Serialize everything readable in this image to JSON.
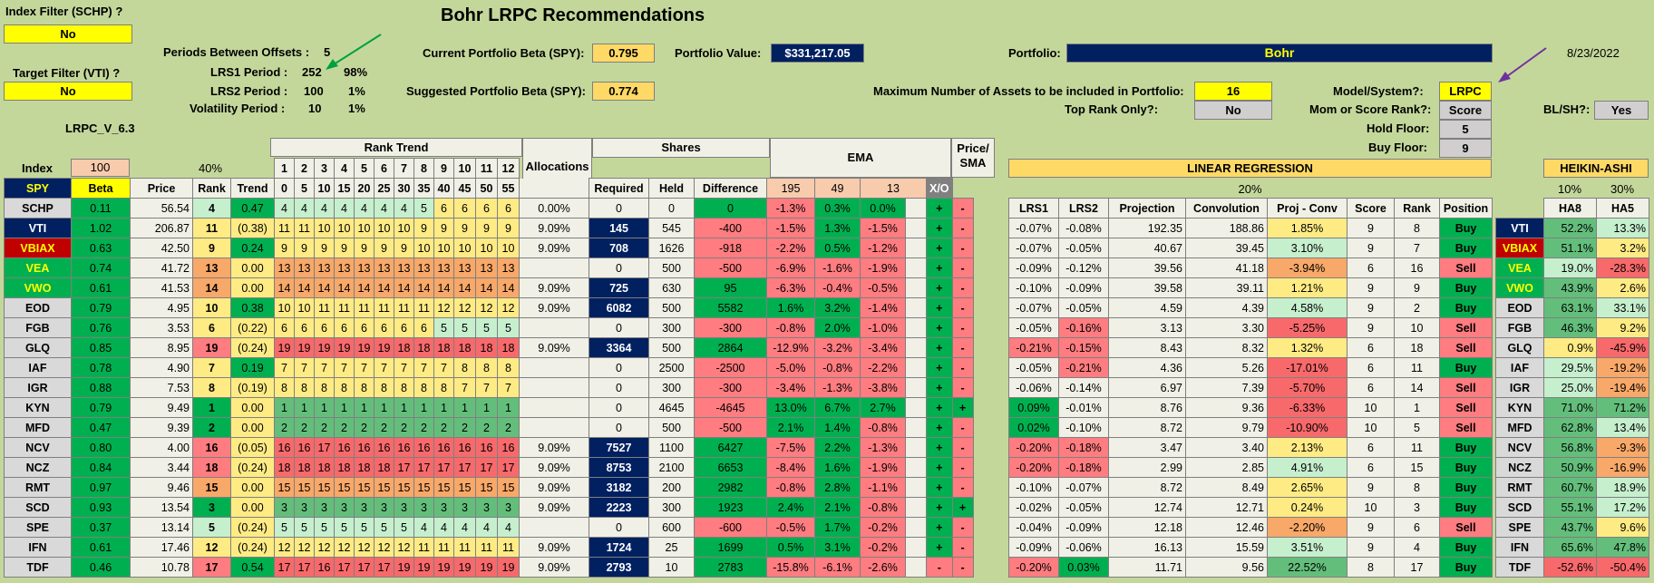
{
  "title": "Bohr LRPC Recommendations",
  "index_filter": {
    "label": "Index Filter (SCHP) ?",
    "value": "No"
  },
  "target_filter": {
    "label": "Target Filter (VTI) ?",
    "value": "No"
  },
  "version": "LRPC_V_6.3",
  "periods": {
    "offsets_label": "Periods Between Offsets :",
    "offsets_value": "5",
    "lrs1_label": "LRS1 Period :",
    "lrs1_value": "252",
    "lrs1_pct": "98%",
    "lrs2_label": "LRS2 Period :",
    "lrs2_value": "100",
    "lrs2_pct": "1%",
    "vol_label": "Volatility Period :",
    "vol_value": "10",
    "vol_pct": "1%"
  },
  "beta": {
    "current_label": "Current Portfolio Beta (SPY):",
    "current_value": "0.795",
    "suggested_label": "Suggested Portfolio Beta (SPY):",
    "suggested_value": "0.774"
  },
  "portfolio_value": {
    "label": "Portfolio Value:",
    "value": "$331,217.05"
  },
  "portfolio": {
    "label": "Portfolio:",
    "value": "Bohr"
  },
  "date": "8/23/2022",
  "max_assets": {
    "label": "Maximum Number of Assets to be included in Portfolio:",
    "value": "16"
  },
  "top_rank": {
    "label": "Top Rank Only?:",
    "value": "No"
  },
  "model": {
    "label": "Model/System?:",
    "value": "LRPC"
  },
  "mom_score": {
    "label": "Mom or Score Rank?:",
    "value": "Score"
  },
  "hold_floor": {
    "label": "Hold Floor:",
    "value": "5"
  },
  "buy_floor": {
    "label": "Buy Floor:",
    "value": "9"
  },
  "blsh": {
    "label": "BL/SH?:",
    "value": "Yes"
  },
  "section": {
    "rank_trend": "Rank Trend",
    "shares": "Shares",
    "ema": "EMA",
    "price_sma": "Price/ SMA",
    "linreg": "LINEAR REGRESSION",
    "heikin": "HEIKIN-ASHI",
    "lr_pct": "20%",
    "ha8_pct": "10%",
    "ha5_pct": "30%"
  },
  "index_row": {
    "label": "Index",
    "beta_val": "100",
    "rank_pct": "40%"
  },
  "col_headers": {
    "beta": "Beta",
    "price": "Price",
    "rank": "Rank",
    "trend": "Trend",
    "alloc": "Allocations",
    "required": "Required",
    "held": "Held",
    "difference": "Difference",
    "ema195": "195",
    "ema49": "49",
    "ema13": "13",
    "xo": "X/O",
    "lrs1": "LRS1",
    "lrs2": "LRS2",
    "projection": "Projection",
    "convolution": "Convolution",
    "projconv": "Proj - Conv",
    "score": "Score",
    "position": "Position",
    "ha8": "HA8",
    "ha5": "HA5"
  },
  "rank_nums": [
    "1",
    "2",
    "3",
    "4",
    "5",
    "6",
    "7",
    "8",
    "9",
    "10",
    "11",
    "12"
  ],
  "rank_offs": [
    "0",
    "5",
    "10",
    "15",
    "20",
    "25",
    "30",
    "35",
    "40",
    "45",
    "50",
    "55"
  ],
  "spy": "SPY",
  "rows": [
    {
      "t": "SCHP",
      "beta": "0.11",
      "price": "56.54",
      "rank": "4",
      "trend": "0.47",
      "rt": [
        "4",
        "4",
        "4",
        "4",
        "4",
        "4",
        "4",
        "5",
        "6",
        "6",
        "6",
        "6"
      ],
      "alloc": "0.00%",
      "req": "0",
      "held": "0",
      "diff": "0",
      "e1": "-1.3%",
      "e2": "0.3%",
      "e3": "0.0%",
      "x1": "+",
      "x2": "-",
      "l1": "-0.07%",
      "l2": "-0.08%",
      "proj": "192.35",
      "conv": "188.86",
      "pc": "1.85%",
      "sc": "9",
      "rk": "8",
      "pos": "Buy",
      "t2": "VTI",
      "h8": "52.2%",
      "h5": "13.3%"
    },
    {
      "t": "VTI",
      "beta": "1.02",
      "price": "206.87",
      "rank": "11",
      "trend": "(0.38)",
      "rt": [
        "11",
        "11",
        "10",
        "10",
        "10",
        "10",
        "10",
        "9",
        "9",
        "9",
        "9",
        "9"
      ],
      "alloc": "9.09%",
      "req": "145",
      "held": "545",
      "diff": "-400",
      "e1": "-1.5%",
      "e2": "1.3%",
      "e3": "-1.5%",
      "x1": "+",
      "x2": "-",
      "l1": "-0.07%",
      "l2": "-0.05%",
      "proj": "40.67",
      "conv": "39.45",
      "pc": "3.10%",
      "sc": "9",
      "rk": "7",
      "pos": "Buy",
      "t2": "VBIAX",
      "h8": "51.1%",
      "h5": "3.2%"
    },
    {
      "t": "VBIAX",
      "beta": "0.63",
      "price": "42.50",
      "rank": "9",
      "trend": "0.24",
      "rt": [
        "9",
        "9",
        "9",
        "9",
        "9",
        "9",
        "9",
        "10",
        "10",
        "10",
        "10",
        "10"
      ],
      "alloc": "9.09%",
      "req": "708",
      "held": "1626",
      "diff": "-918",
      "e1": "-2.2%",
      "e2": "0.5%",
      "e3": "-1.2%",
      "x1": "+",
      "x2": "-",
      "l1": "-0.09%",
      "l2": "-0.12%",
      "proj": "39.56",
      "conv": "41.18",
      "pc": "-3.94%",
      "sc": "6",
      "rk": "16",
      "pos": "Sell",
      "t2": "VEA",
      "h8": "19.0%",
      "h5": "-28.3%"
    },
    {
      "t": "VEA",
      "beta": "0.74",
      "price": "41.72",
      "rank": "13",
      "trend": "0.00",
      "rt": [
        "13",
        "13",
        "13",
        "13",
        "13",
        "13",
        "13",
        "13",
        "13",
        "13",
        "13",
        "13"
      ],
      "alloc": "",
      "req": "0",
      "held": "500",
      "diff": "-500",
      "e1": "-6.9%",
      "e2": "-1.6%",
      "e3": "-1.9%",
      "x1": "+",
      "x2": "-",
      "l1": "-0.10%",
      "l2": "-0.09%",
      "proj": "39.58",
      "conv": "39.11",
      "pc": "1.21%",
      "sc": "9",
      "rk": "9",
      "pos": "Buy",
      "t2": "VWO",
      "h8": "43.9%",
      "h5": "2.6%"
    },
    {
      "t": "VWO",
      "beta": "0.61",
      "price": "41.53",
      "rank": "14",
      "trend": "0.00",
      "rt": [
        "14",
        "14",
        "14",
        "14",
        "14",
        "14",
        "14",
        "14",
        "14",
        "14",
        "14",
        "14"
      ],
      "alloc": "9.09%",
      "req": "725",
      "held": "630",
      "diff": "95",
      "e1": "-6.3%",
      "e2": "-0.4%",
      "e3": "-0.5%",
      "x1": "+",
      "x2": "-",
      "l1": "-0.07%",
      "l2": "-0.05%",
      "proj": "4.59",
      "conv": "4.39",
      "pc": "4.58%",
      "sc": "9",
      "rk": "2",
      "pos": "Buy",
      "t2": "EOD",
      "h8": "63.1%",
      "h5": "33.1%"
    },
    {
      "t": "EOD",
      "beta": "0.79",
      "price": "4.95",
      "rank": "10",
      "trend": "0.38",
      "rt": [
        "10",
        "10",
        "11",
        "11",
        "11",
        "11",
        "11",
        "11",
        "12",
        "12",
        "12",
        "12"
      ],
      "alloc": "9.09%",
      "req": "6082",
      "held": "500",
      "diff": "5582",
      "e1": "1.6%",
      "e2": "3.2%",
      "e3": "-1.4%",
      "x1": "+",
      "x2": "-",
      "l1": "-0.05%",
      "l2": "-0.16%",
      "proj": "3.13",
      "conv": "3.30",
      "pc": "-5.25%",
      "sc": "9",
      "rk": "10",
      "pos": "Sell",
      "t2": "FGB",
      "h8": "46.3%",
      "h5": "9.2%"
    },
    {
      "t": "FGB",
      "beta": "0.76",
      "price": "3.53",
      "rank": "6",
      "trend": "(0.22)",
      "rt": [
        "6",
        "6",
        "6",
        "6",
        "6",
        "6",
        "6",
        "6",
        "5",
        "5",
        "5",
        "5"
      ],
      "alloc": "",
      "req": "0",
      "held": "300",
      "diff": "-300",
      "e1": "-0.8%",
      "e2": "2.0%",
      "e3": "-1.0%",
      "x1": "+",
      "x2": "-",
      "l1": "-0.21%",
      "l2": "-0.15%",
      "proj": "8.43",
      "conv": "8.32",
      "pc": "1.32%",
      "sc": "6",
      "rk": "18",
      "pos": "Sell",
      "t2": "GLQ",
      "h8": "0.9%",
      "h5": "-45.9%"
    },
    {
      "t": "GLQ",
      "beta": "0.85",
      "price": "8.95",
      "rank": "19",
      "trend": "(0.24)",
      "rt": [
        "19",
        "19",
        "19",
        "19",
        "19",
        "19",
        "18",
        "18",
        "18",
        "18",
        "18",
        "18"
      ],
      "alloc": "9.09%",
      "req": "3364",
      "held": "500",
      "diff": "2864",
      "e1": "-12.9%",
      "e2": "-3.2%",
      "e3": "-3.4%",
      "x1": "+",
      "x2": "-",
      "l1": "-0.05%",
      "l2": "-0.21%",
      "proj": "4.36",
      "conv": "5.26",
      "pc": "-17.01%",
      "sc": "6",
      "rk": "11",
      "pos": "Buy",
      "t2": "IAF",
      "h8": "29.5%",
      "h5": "-19.2%"
    },
    {
      "t": "IAF",
      "beta": "0.78",
      "price": "4.90",
      "rank": "7",
      "trend": "0.19",
      "rt": [
        "7",
        "7",
        "7",
        "7",
        "7",
        "7",
        "7",
        "7",
        "7",
        "8",
        "8",
        "8"
      ],
      "alloc": "",
      "req": "0",
      "held": "2500",
      "diff": "-2500",
      "e1": "-5.0%",
      "e2": "-0.8%",
      "e3": "-2.2%",
      "x1": "+",
      "x2": "-",
      "l1": "-0.06%",
      "l2": "-0.14%",
      "proj": "6.97",
      "conv": "7.39",
      "pc": "-5.70%",
      "sc": "6",
      "rk": "14",
      "pos": "Sell",
      "t2": "IGR",
      "h8": "25.0%",
      "h5": "-19.4%"
    },
    {
      "t": "IGR",
      "beta": "0.88",
      "price": "7.53",
      "rank": "8",
      "trend": "(0.19)",
      "rt": [
        "8",
        "8",
        "8",
        "8",
        "8",
        "8",
        "8",
        "8",
        "8",
        "7",
        "7",
        "7"
      ],
      "alloc": "",
      "req": "0",
      "held": "300",
      "diff": "-300",
      "e1": "-3.4%",
      "e2": "-1.3%",
      "e3": "-3.8%",
      "x1": "+",
      "x2": "-",
      "l1": "0.09%",
      "l2": "-0.01%",
      "proj": "8.76",
      "conv": "9.36",
      "pc": "-6.33%",
      "sc": "10",
      "rk": "1",
      "pos": "Sell",
      "t2": "KYN",
      "h8": "71.0%",
      "h5": "71.2%"
    },
    {
      "t": "KYN",
      "beta": "0.79",
      "price": "9.49",
      "rank": "1",
      "trend": "0.00",
      "rt": [
        "1",
        "1",
        "1",
        "1",
        "1",
        "1",
        "1",
        "1",
        "1",
        "1",
        "1",
        "1"
      ],
      "alloc": "",
      "req": "0",
      "held": "4645",
      "diff": "-4645",
      "e1": "13.0%",
      "e2": "6.7%",
      "e3": "2.7%",
      "x1": "+",
      "x2": "+",
      "l1": "0.02%",
      "l2": "-0.10%",
      "proj": "8.72",
      "conv": "9.79",
      "pc": "-10.90%",
      "sc": "10",
      "rk": "5",
      "pos": "Sell",
      "t2": "MFD",
      "h8": "62.8%",
      "h5": "13.4%"
    },
    {
      "t": "MFD",
      "beta": "0.47",
      "price": "9.39",
      "rank": "2",
      "trend": "0.00",
      "rt": [
        "2",
        "2",
        "2",
        "2",
        "2",
        "2",
        "2",
        "2",
        "2",
        "2",
        "2",
        "2"
      ],
      "alloc": "",
      "req": "0",
      "held": "500",
      "diff": "-500",
      "e1": "2.1%",
      "e2": "1.4%",
      "e3": "-0.8%",
      "x1": "+",
      "x2": "-",
      "l1": "-0.20%",
      "l2": "-0.18%",
      "proj": "3.47",
      "conv": "3.40",
      "pc": "2.13%",
      "sc": "6",
      "rk": "11",
      "pos": "Buy",
      "t2": "NCV",
      "h8": "56.8%",
      "h5": "-9.3%"
    },
    {
      "t": "NCV",
      "beta": "0.80",
      "price": "4.00",
      "rank": "16",
      "trend": "(0.05)",
      "rt": [
        "16",
        "16",
        "17",
        "16",
        "16",
        "16",
        "16",
        "16",
        "16",
        "16",
        "16",
        "16"
      ],
      "alloc": "9.09%",
      "req": "7527",
      "held": "1100",
      "diff": "6427",
      "e1": "-7.5%",
      "e2": "2.2%",
      "e3": "-1.3%",
      "x1": "+",
      "x2": "-",
      "l1": "-0.20%",
      "l2": "-0.18%",
      "proj": "2.99",
      "conv": "2.85",
      "pc": "4.91%",
      "sc": "6",
      "rk": "15",
      "pos": "Buy",
      "t2": "NCZ",
      "h8": "50.9%",
      "h5": "-16.9%"
    },
    {
      "t": "NCZ",
      "beta": "0.84",
      "price": "3.44",
      "rank": "18",
      "trend": "(0.24)",
      "rt": [
        "18",
        "18",
        "18",
        "18",
        "18",
        "18",
        "17",
        "17",
        "17",
        "17",
        "17",
        "17"
      ],
      "alloc": "9.09%",
      "req": "8753",
      "held": "2100",
      "diff": "6653",
      "e1": "-8.4%",
      "e2": "1.6%",
      "e3": "-1.9%",
      "x1": "+",
      "x2": "-",
      "l1": "-0.10%",
      "l2": "-0.07%",
      "proj": "8.72",
      "conv": "8.49",
      "pc": "2.65%",
      "sc": "9",
      "rk": "8",
      "pos": "Buy",
      "t2": "RMT",
      "h8": "60.7%",
      "h5": "18.9%"
    },
    {
      "t": "RMT",
      "beta": "0.97",
      "price": "9.46",
      "rank": "15",
      "trend": "0.00",
      "rt": [
        "15",
        "15",
        "15",
        "15",
        "15",
        "15",
        "15",
        "15",
        "15",
        "15",
        "15",
        "15"
      ],
      "alloc": "9.09%",
      "req": "3182",
      "held": "200",
      "diff": "2982",
      "e1": "-0.8%",
      "e2": "2.8%",
      "e3": "-1.1%",
      "x1": "+",
      "x2": "-",
      "l1": "-0.02%",
      "l2": "-0.05%",
      "proj": "12.74",
      "conv": "12.71",
      "pc": "0.24%",
      "sc": "10",
      "rk": "3",
      "pos": "Buy",
      "t2": "SCD",
      "h8": "55.1%",
      "h5": "17.2%"
    },
    {
      "t": "SCD",
      "beta": "0.93",
      "price": "13.54",
      "rank": "3",
      "trend": "0.00",
      "rt": [
        "3",
        "3",
        "3",
        "3",
        "3",
        "3",
        "3",
        "3",
        "3",
        "3",
        "3",
        "3"
      ],
      "alloc": "9.09%",
      "req": "2223",
      "held": "300",
      "diff": "1923",
      "e1": "2.4%",
      "e2": "2.1%",
      "e3": "-0.8%",
      "x1": "+",
      "x2": "+",
      "l1": "-0.04%",
      "l2": "-0.09%",
      "proj": "12.18",
      "conv": "12.46",
      "pc": "-2.20%",
      "sc": "9",
      "rk": "6",
      "pos": "Sell",
      "t2": "SPE",
      "h8": "43.7%",
      "h5": "9.6%"
    },
    {
      "t": "SPE",
      "beta": "0.37",
      "price": "13.14",
      "rank": "5",
      "trend": "(0.24)",
      "rt": [
        "5",
        "5",
        "5",
        "5",
        "5",
        "5",
        "5",
        "4",
        "4",
        "4",
        "4",
        "4"
      ],
      "alloc": "",
      "req": "0",
      "held": "600",
      "diff": "-600",
      "e1": "-0.5%",
      "e2": "1.7%",
      "e3": "-0.2%",
      "x1": "+",
      "x2": "-",
      "l1": "-0.09%",
      "l2": "-0.06%",
      "proj": "16.13",
      "conv": "15.59",
      "pc": "3.51%",
      "sc": "9",
      "rk": "4",
      "pos": "Buy",
      "t2": "IFN",
      "h8": "65.6%",
      "h5": "47.8%"
    },
    {
      "t": "IFN",
      "beta": "0.61",
      "price": "17.46",
      "rank": "12",
      "trend": "(0.24)",
      "rt": [
        "12",
        "12",
        "12",
        "12",
        "12",
        "12",
        "12",
        "11",
        "11",
        "11",
        "11",
        "11"
      ],
      "alloc": "9.09%",
      "req": "1724",
      "held": "25",
      "diff": "1699",
      "e1": "0.5%",
      "e2": "3.1%",
      "e3": "-0.2%",
      "x1": "+",
      "x2": "-",
      "l1": "-0.20%",
      "l2": "0.03%",
      "proj": "11.71",
      "conv": "9.56",
      "pc": "22.52%",
      "sc": "8",
      "rk": "17",
      "pos": "Buy",
      "t2": "TDF",
      "h8": "-52.6%",
      "h5": "-50.4%"
    },
    {
      "t": "TDF",
      "beta": "0.46",
      "price": "10.78",
      "rank": "17",
      "trend": "0.54",
      "rt": [
        "17",
        "17",
        "16",
        "17",
        "17",
        "17",
        "19",
        "19",
        "19",
        "19",
        "19",
        "19"
      ],
      "alloc": "9.09%",
      "req": "2793",
      "held": "10",
      "diff": "2783",
      "e1": "-15.8%",
      "e2": "-6.1%",
      "e3": "-2.6%",
      "x1": "-",
      "x2": "-",
      "l1": "",
      "l2": "",
      "proj": "",
      "conv": "",
      "pc": "",
      "sc": "",
      "rk": "",
      "pos": "",
      "t2": "",
      "h8": "",
      "h5": ""
    }
  ]
}
